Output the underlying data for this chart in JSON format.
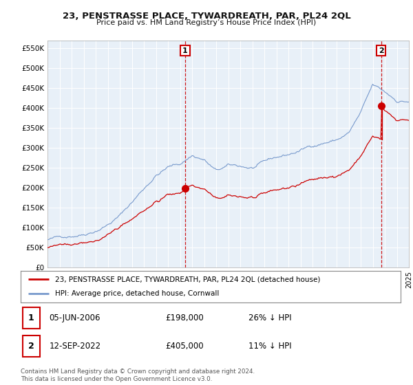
{
  "title": "23, PENSTRASSE PLACE, TYWARDREATH, PAR, PL24 2QL",
  "subtitle": "Price paid vs. HM Land Registry’s House Price Index (HPI)",
  "ylim": [
    0,
    570000
  ],
  "yticks": [
    0,
    50000,
    100000,
    150000,
    200000,
    250000,
    300000,
    350000,
    400000,
    450000,
    500000,
    550000
  ],
  "ytick_labels": [
    "£0",
    "£50K",
    "£100K",
    "£150K",
    "£200K",
    "£250K",
    "£300K",
    "£350K",
    "£400K",
    "£450K",
    "£500K",
    "£550K"
  ],
  "background_color": "#ffffff",
  "plot_bg_color": "#e8f0f8",
  "grid_color": "#ffffff",
  "hpi_color": "#7799cc",
  "price_color": "#cc0000",
  "purchase1_year": 2006.43,
  "purchase1_price": 198000,
  "purchase2_year": 2022.7,
  "purchase2_price": 405000,
  "purchase1_date": "05-JUN-2006",
  "purchase1_amount": "£198,000",
  "purchase1_hpi": "26% ↓ HPI",
  "purchase2_date": "12-SEP-2022",
  "purchase2_amount": "£405,000",
  "purchase2_hpi": "11% ↓ HPI",
  "legend_label1": "23, PENSTRASSE PLACE, TYWARDREATH, PAR, PL24 2QL (detached house)",
  "legend_label2": "HPI: Average price, detached house, Cornwall",
  "footer": "Contains HM Land Registry data © Crown copyright and database right 2024.\nThis data is licensed under the Open Government Licence v3.0.",
  "x_start_year": 1995,
  "x_end_year": 2025
}
